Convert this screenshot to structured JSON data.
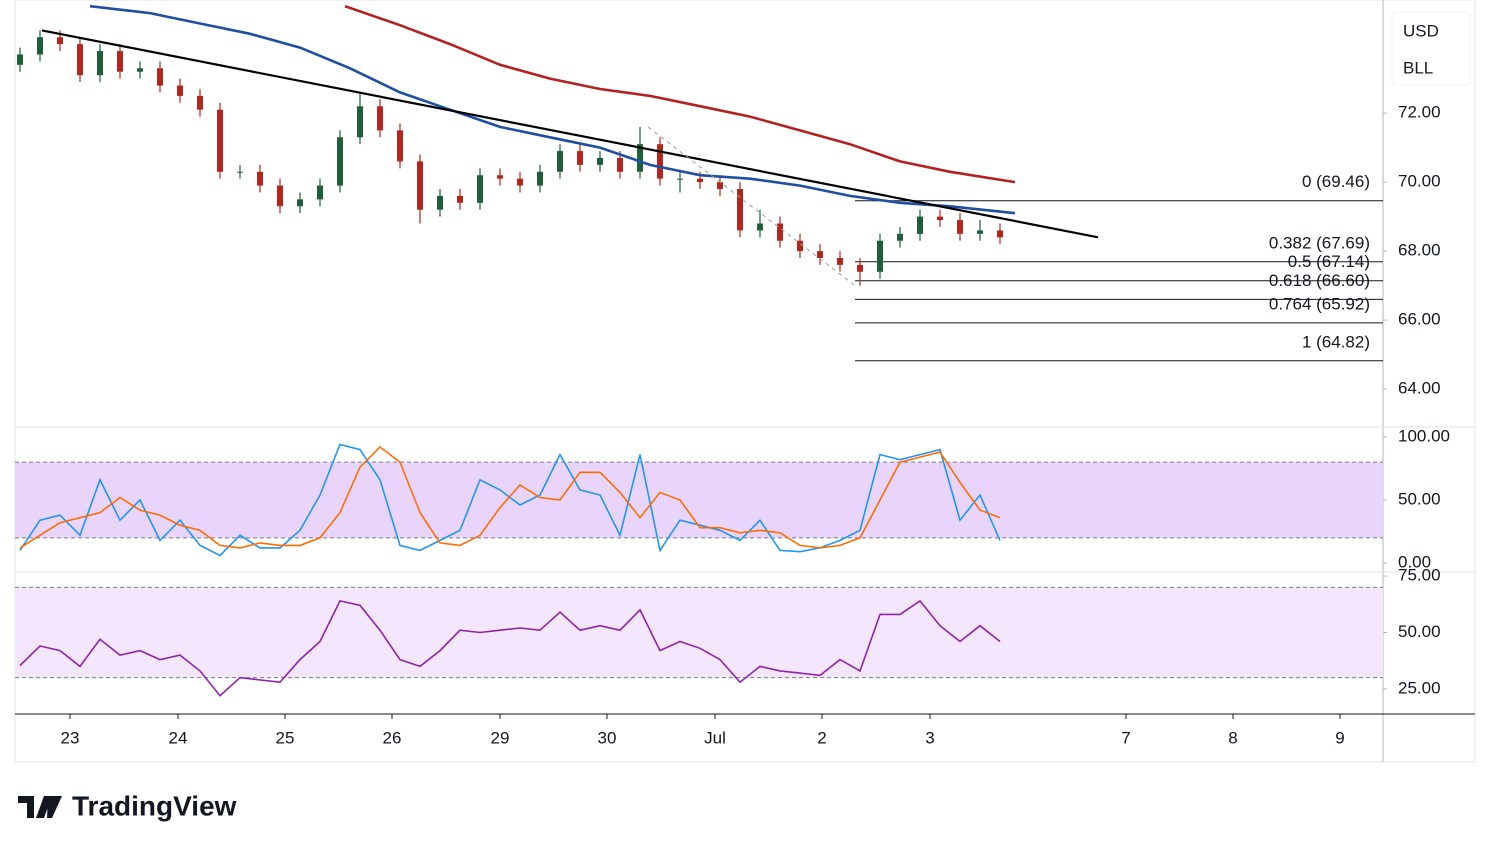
{
  "header": {
    "currency": "USD",
    "symbol": "BLL"
  },
  "brand": "TradingView",
  "chart_data": [
    {
      "type": "candlestick",
      "xlim": [
        -0.25,
        68.15
      ],
      "xticks": [
        {
          "value": 2.5,
          "label": "23"
        },
        {
          "value": 7.9,
          "label": "24"
        },
        {
          "value": 13.25,
          "label": "25"
        },
        {
          "value": 18.6,
          "label": "26"
        },
        {
          "value": 24,
          "label": "29"
        },
        {
          "value": 29.35,
          "label": "30"
        },
        {
          "value": 34.75,
          "label": "Jul"
        },
        {
          "value": 40.1,
          "label": "2"
        },
        {
          "value": 45.5,
          "label": "3"
        },
        {
          "value": 55.3,
          "label": "7"
        },
        {
          "value": 60.65,
          "label": "8"
        },
        {
          "value": 66,
          "label": "9"
        }
      ],
      "ylim": [
        62.9,
        75.28
      ],
      "yticks": [
        {
          "value": 64,
          "label": "64.00"
        },
        {
          "value": 66,
          "label": "66.00"
        },
        {
          "value": 68,
          "label": "68.00"
        },
        {
          "value": 70,
          "label": "70.00"
        },
        {
          "value": 72,
          "label": "72.00"
        }
      ],
      "up_color": "#1e5e3a",
      "down_color": "#b3261e",
      "open": [
        73.4,
        73.7,
        74.2,
        74.0,
        73.1,
        73.8,
        73.2,
        73.3,
        72.8,
        72.5,
        72.1,
        70.3,
        70.3,
        69.9,
        69.3,
        69.5,
        69.9,
        71.3,
        72.2,
        71.5,
        70.6,
        69.2,
        69.6,
        69.4,
        70.2,
        70.1,
        69.9,
        70.3,
        70.9,
        70.5,
        70.7,
        70.3,
        71.1,
        70.1,
        70.1,
        70.0,
        69.8,
        68.6,
        68.8,
        68.3,
        68.0,
        67.8,
        67.6,
        67.4,
        68.3,
        68.5,
        69.0,
        68.9,
        68.5,
        68.6
      ],
      "high": [
        73.9,
        74.4,
        74.4,
        74.2,
        74.0,
        74.0,
        73.5,
        73.5,
        73.0,
        72.7,
        72.3,
        70.5,
        70.5,
        70.1,
        69.7,
        70.1,
        71.5,
        72.6,
        72.4,
        71.7,
        70.8,
        69.8,
        69.8,
        70.4,
        70.4,
        70.3,
        70.5,
        71.1,
        71.1,
        70.9,
        70.9,
        71.6,
        71.3,
        70.3,
        70.3,
        70.2,
        70.0,
        69.2,
        69.0,
        68.5,
        68.2,
        68.0,
        67.8,
        68.5,
        68.7,
        69.2,
        69.2,
        69.1,
        68.9,
        68.8
      ],
      "low": [
        73.2,
        73.5,
        73.8,
        72.9,
        72.9,
        73.0,
        73.0,
        72.6,
        72.3,
        71.9,
        70.1,
        70.1,
        69.7,
        69.1,
        69.1,
        69.3,
        69.7,
        71.1,
        71.3,
        70.4,
        68.8,
        69.0,
        69.2,
        69.2,
        69.9,
        69.7,
        69.7,
        70.1,
        70.3,
        70.3,
        70.1,
        70.1,
        69.9,
        69.7,
        69.8,
        69.6,
        68.4,
        68.4,
        68.1,
        67.8,
        67.6,
        67.4,
        67.0,
        67.2,
        68.1,
        68.3,
        68.7,
        68.3,
        68.3,
        68.2
      ],
      "close": [
        73.7,
        74.2,
        74.0,
        73.1,
        73.8,
        73.2,
        73.3,
        72.8,
        72.5,
        72.1,
        70.3,
        70.3,
        69.9,
        69.3,
        69.5,
        69.9,
        71.3,
        72.2,
        71.5,
        70.6,
        69.2,
        69.6,
        69.4,
        70.2,
        70.1,
        69.9,
        70.3,
        70.9,
        70.5,
        70.7,
        70.3,
        71.1,
        70.1,
        70.1,
        70.0,
        69.8,
        68.6,
        68.8,
        68.3,
        68.0,
        67.8,
        67.6,
        67.4,
        68.3,
        68.5,
        69.0,
        68.9,
        68.5,
        68.6,
        68.4
      ],
      "series": [
        {
          "color": "#1e4fa3",
          "x": [
            3.5,
            6.5,
            9,
            11.5,
            14,
            16.5,
            19,
            21.5,
            24,
            26.5,
            29,
            31.5,
            34,
            36.5,
            39,
            41.5,
            44,
            46.5,
            49.75
          ],
          "values": [
            75.1,
            74.9,
            74.6,
            74.3,
            73.9,
            73.3,
            72.6,
            72.1,
            71.6,
            71.3,
            71.0,
            70.5,
            70.2,
            70.1,
            69.9,
            69.6,
            69.4,
            69.3,
            69.1
          ]
        },
        {
          "color": "#b22222",
          "x": [
            16.25,
            19,
            21.5,
            24,
            26.5,
            29,
            31.5,
            34,
            36.5,
            39,
            41.5,
            44,
            46.5,
            49.75
          ],
          "values": [
            75.1,
            74.55,
            74.0,
            73.4,
            73.0,
            72.7,
            72.5,
            72.2,
            71.9,
            71.5,
            71.1,
            70.6,
            70.3,
            70.0
          ]
        },
        {
          "color": "#000000",
          "style": "solid",
          "x": [
            1.1,
            53.9
          ],
          "values": [
            74.4,
            68.4
          ]
        },
        {
          "color": "#9e9e9e",
          "style": "dashed",
          "x": [
            31.4,
            41.75
          ],
          "values": [
            71.6,
            67.0
          ]
        }
      ],
      "fib": {
        "x_start": 41.75,
        "values": [
          69.46,
          67.69,
          67.14,
          66.6,
          65.92,
          64.82
        ],
        "value_labels": [
          "0 (69.46)",
          "0.382 (67.69)",
          "0.5 (67.14)",
          "0.618 (66.60)",
          "0.764 (65.92)",
          "1 (64.82)"
        ]
      }
    },
    {
      "type": "line",
      "ylim": [
        -7.1,
        107.9
      ],
      "yticks": [
        {
          "value": 0,
          "label": "0.00"
        },
        {
          "value": 50,
          "label": "50.00"
        },
        {
          "value": 100,
          "label": "100.00"
        }
      ],
      "bands": [
        20,
        80
      ],
      "band_color": "#e9d5fb",
      "series": [
        {
          "color": "#2196f3",
          "values": [
            10,
            34,
            38,
            22,
            66,
            34,
            50,
            18,
            34,
            14,
            6,
            22,
            12,
            12,
            26,
            54,
            94,
            90,
            66,
            14,
            10,
            18,
            26,
            66,
            58,
            46,
            54,
            86,
            58,
            54,
            22,
            86,
            10,
            34,
            30,
            26,
            18,
            34,
            10,
            9,
            12,
            18,
            26,
            86,
            82,
            86,
            90,
            34,
            54,
            18
          ]
        },
        {
          "color": "#ff6d00",
          "values": [
            12,
            22,
            32,
            36,
            40,
            52,
            42,
            38,
            30,
            26,
            14,
            12,
            16,
            14,
            14,
            20,
            40,
            76,
            92,
            80,
            40,
            16,
            14,
            22,
            44,
            62,
            52,
            50,
            72,
            72,
            56,
            36,
            56,
            50,
            28,
            28,
            24,
            26,
            24,
            14,
            12,
            14,
            20,
            50,
            80,
            84,
            88,
            64,
            42,
            36
          ]
        }
      ]
    },
    {
      "type": "line",
      "ylim": [
        13.9,
        76.8
      ],
      "yticks": [
        {
          "value": 25,
          "label": "25.00"
        },
        {
          "value": 50,
          "label": "50.00"
        },
        {
          "value": 75,
          "label": "75.00"
        }
      ],
      "bands": [
        30,
        70
      ],
      "band_color": "#f4e6fd",
      "series": [
        {
          "color": "#8e24aa",
          "values": [
            35.4,
            44,
            42,
            35,
            47,
            40,
            42,
            38,
            40,
            33,
            22,
            30,
            29,
            28,
            38,
            46,
            64,
            62,
            51,
            38,
            35,
            42,
            51,
            50,
            51,
            52,
            51,
            59,
            51,
            53,
            51,
            60,
            42,
            46,
            43,
            38,
            28,
            35,
            33,
            32,
            31,
            38,
            33,
            58,
            58,
            64,
            53,
            46,
            53,
            46
          ]
        }
      ]
    }
  ]
}
